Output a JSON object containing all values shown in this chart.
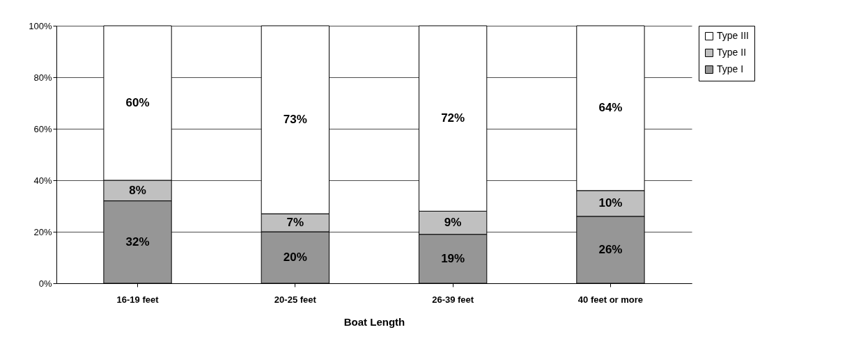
{
  "chart_data": {
    "type": "bar",
    "stacked": true,
    "xlabel": "Boat Length",
    "categories": [
      "16-19 feet",
      "20-25 feet",
      "26-39 feet",
      "40 feet or more"
    ],
    "series": [
      {
        "name": "Type I",
        "color": "#969696",
        "values": [
          32,
          20,
          19,
          26
        ],
        "value_labels": [
          "32%",
          "20%",
          "19%",
          "26%"
        ]
      },
      {
        "name": "Type II",
        "color": "#c0c0c0",
        "values": [
          8,
          7,
          9,
          10
        ],
        "value_labels": [
          "8%",
          "7%",
          "9%",
          "10%"
        ]
      },
      {
        "name": "Type III",
        "color": "#ffffff",
        "values": [
          60,
          73,
          72,
          64
        ],
        "value_labels": [
          "60%",
          "73%",
          "72%",
          "64%"
        ]
      }
    ],
    "ylim": [
      0,
      100
    ],
    "yticks": [
      {
        "value": 0,
        "label": "0%"
      },
      {
        "value": 20,
        "label": "20%"
      },
      {
        "value": 40,
        "label": "40%"
      },
      {
        "value": 60,
        "label": "60%"
      },
      {
        "value": 80,
        "label": "80%"
      },
      {
        "value": 100,
        "label": "100%"
      }
    ],
    "grid": "y",
    "legend": "right"
  }
}
